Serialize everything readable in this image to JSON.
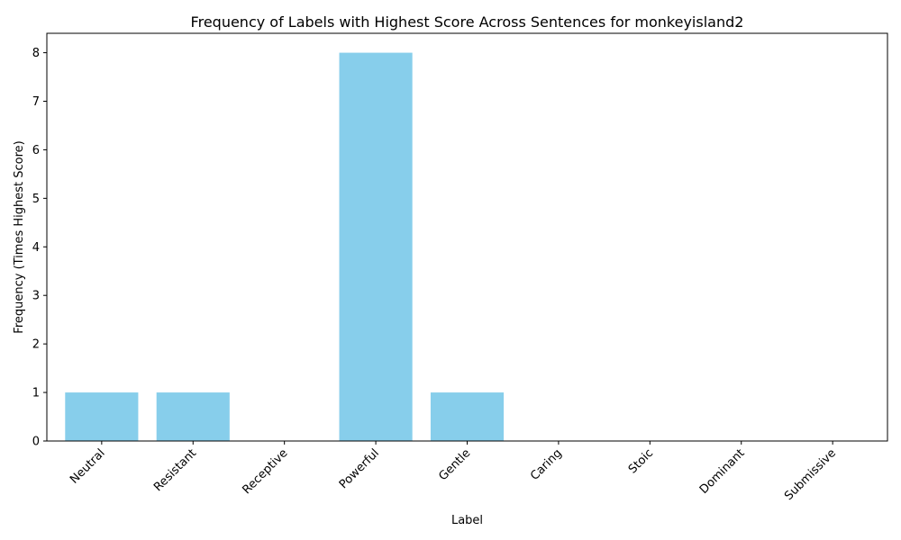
{
  "chart_data": {
    "type": "bar",
    "title": "Frequency of Labels with Highest Score Across Sentences for monkeyisland2",
    "xlabel": "Label",
    "ylabel": "Frequency (Times Highest Score)",
    "categories": [
      "Neutral",
      "Resistant",
      "Receptive",
      "Powerful",
      "Gentle",
      "Caring",
      "Stoic",
      "Dominant",
      "Submissive"
    ],
    "values": [
      1,
      1,
      0,
      8,
      1,
      0,
      0,
      0,
      0
    ],
    "ylim": [
      0,
      8.4
    ],
    "yticks": [
      0,
      1,
      2,
      3,
      4,
      5,
      6,
      7,
      8
    ],
    "bar_color": "#87CEEB",
    "grid": false,
    "legend": "none"
  }
}
